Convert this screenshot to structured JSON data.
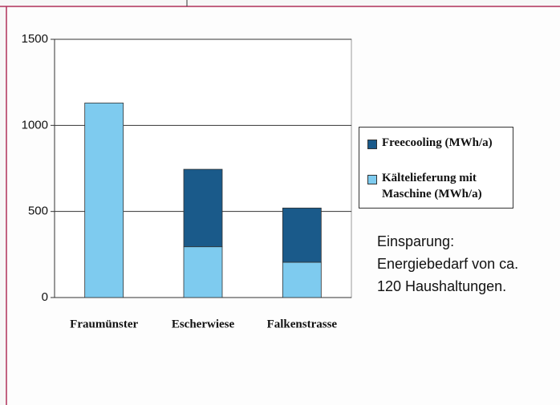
{
  "chart_data": {
    "type": "stacked_bar",
    "categories": [
      "Fraumünster",
      "Escherwiese",
      "Falkenstrasse"
    ],
    "series": [
      {
        "name": "Kältelieferung mit Maschine (MWh/a)",
        "color": "#7ecbef",
        "values": [
          1130,
          295,
          205
        ]
      },
      {
        "name": "Freecooling (MWh/a)",
        "color": "#1a5a8a",
        "values": [
          0,
          450,
          315
        ]
      }
    ],
    "ylim": [
      0,
      1500
    ],
    "yticks": [
      0,
      500,
      1000,
      1500
    ],
    "grid": true,
    "legend": "right",
    "annotation": [
      "Einsparung:",
      "Energiebedarf von ca.",
      "120 Haushaltungen."
    ]
  }
}
